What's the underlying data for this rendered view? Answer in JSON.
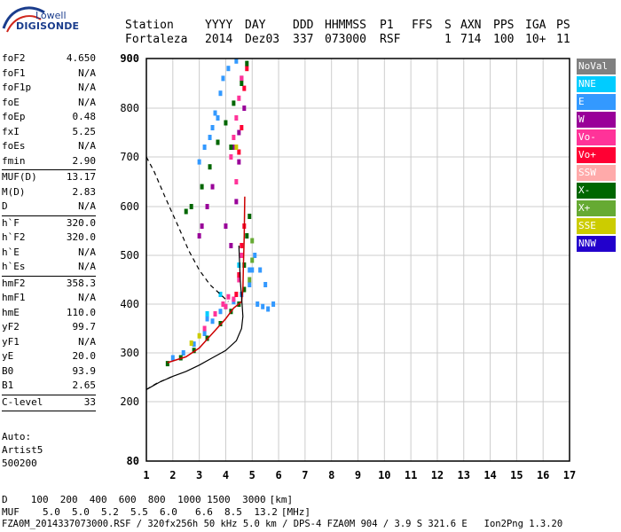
{
  "logo": {
    "line1": "Lowell",
    "line2": "DIGISONDE"
  },
  "header": {
    "labels": [
      "Station",
      "YYYY",
      "DAY",
      "DDD",
      "HHMMSS",
      "P1",
      "FFS",
      "S",
      "AXN",
      "PPS",
      "IGA",
      "PS"
    ],
    "values": [
      "Fortaleza",
      "2014",
      "Dez03",
      "337",
      "073000",
      "RSF",
      "1",
      "714",
      "100",
      "10+",
      "11"
    ]
  },
  "params": [
    {
      "label": "foF2",
      "value": "4.650"
    },
    {
      "label": "foF1",
      "value": "N/A"
    },
    {
      "label": "foF1p",
      "value": "N/A"
    },
    {
      "label": "foE",
      "value": "N/A"
    },
    {
      "label": "foEp",
      "value": "0.48"
    },
    {
      "label": "fxI",
      "value": "5.25"
    },
    {
      "label": "foEs",
      "value": "N/A"
    },
    {
      "label": "fmin",
      "value": "2.90",
      "sep": true
    },
    {
      "label": "MUF(D)",
      "value": "13.17"
    },
    {
      "label": "M(D)",
      "value": "2.83"
    },
    {
      "label": "D",
      "value": "N/A",
      "sep": true
    },
    {
      "label": "h`F",
      "value": "320.0"
    },
    {
      "label": "h`F2",
      "value": "320.0"
    },
    {
      "label": "h`E",
      "value": "N/A"
    },
    {
      "label": "h`Es",
      "value": "N/A",
      "sep": true
    },
    {
      "label": "hmF2",
      "value": "358.3"
    },
    {
      "label": "hmF1",
      "value": "N/A"
    },
    {
      "label": "hmE",
      "value": "110.0"
    },
    {
      "label": "yF2",
      "value": "99.7"
    },
    {
      "label": "yF1",
      "value": "N/A"
    },
    {
      "label": "yE",
      "value": "20.0"
    },
    {
      "label": "B0",
      "value": "93.9"
    },
    {
      "label": "B1",
      "value": "2.65",
      "sep": true
    },
    {
      "label": "C-level",
      "value": "33",
      "sep": true
    }
  ],
  "auto": {
    "line1": "Auto:",
    "line2": "Artist5",
    "line3": "500200"
  },
  "legend": [
    {
      "label": "NoVal",
      "color": "#808080"
    },
    {
      "label": "NNE",
      "color": "#00ccff"
    },
    {
      "label": "E",
      "color": "#3399ff"
    },
    {
      "label": "W",
      "color": "#990099"
    },
    {
      "label": "Vo-",
      "color": "#ff3399"
    },
    {
      "label": "Vo+",
      "color": "#ff0033"
    },
    {
      "label": "SSW",
      "color": "#ffaaaa"
    },
    {
      "label": "X-",
      "color": "#006600"
    },
    {
      "label": "X+",
      "color": "#66aa33"
    },
    {
      "label": "SSE",
      "color": "#cccc00"
    },
    {
      "label": "NNW",
      "color": "#2200cc"
    }
  ],
  "footer": {
    "d_label": "D",
    "d_values": [
      "100",
      "200",
      "400",
      "600",
      "800",
      "1000",
      "1500",
      "3000"
    ],
    "d_unit": "[km]",
    "muf_label": "MUF",
    "muf_values": [
      "5.0",
      "5.0",
      "5.2",
      "5.5",
      "6.0",
      "6.6",
      "8.5",
      "13.2"
    ],
    "muf_unit": "[MHz]",
    "info": "FZA0M_2014337073000.RSF / 320fx256h 50 kHz 5.0 km / DPS-4 FZA0M 904 / 3.9 S 321.6 E   Ion2Png 1.3.20"
  },
  "chart_data": {
    "type": "scatter",
    "xlim": [
      1,
      17
    ],
    "ylim": [
      80,
      900
    ],
    "xticks": [
      1,
      2,
      3,
      4,
      5,
      6,
      7,
      8,
      9,
      10,
      11,
      12,
      13,
      14,
      15,
      16,
      17
    ],
    "yticks": [
      80,
      200,
      300,
      400,
      500,
      600,
      700,
      800,
      900
    ],
    "grid": true,
    "series": [
      {
        "name": "E",
        "color": "#3399ff",
        "points": [
          [
            2.0,
            290
          ],
          [
            2.4,
            300
          ],
          [
            2.8,
            318
          ],
          [
            3.2,
            340
          ],
          [
            3.5,
            365
          ],
          [
            3.8,
            385
          ],
          [
            4.0,
            395
          ],
          [
            4.3,
            405
          ],
          [
            4.6,
            420
          ],
          [
            4.9,
            440
          ],
          [
            5.0,
            470
          ],
          [
            5.2,
            400
          ],
          [
            5.4,
            395
          ],
          [
            5.6,
            390
          ],
          [
            5.8,
            400
          ],
          [
            5.5,
            440
          ],
          [
            5.3,
            470
          ],
          [
            5.1,
            500
          ],
          [
            4.9,
            470
          ],
          [
            3.3,
            370
          ],
          [
            3.0,
            690
          ],
          [
            3.4,
            740
          ],
          [
            3.6,
            790
          ],
          [
            3.8,
            830
          ],
          [
            3.7,
            780
          ],
          [
            3.5,
            760
          ],
          [
            3.2,
            720
          ],
          [
            3.9,
            860
          ],
          [
            4.1,
            880
          ],
          [
            4.4,
            895
          ]
        ]
      },
      {
        "name": "W",
        "color": "#990099",
        "points": [
          [
            3.0,
            540
          ],
          [
            3.1,
            560
          ],
          [
            3.3,
            600
          ],
          [
            3.5,
            640
          ],
          [
            4.0,
            560
          ],
          [
            4.2,
            520
          ],
          [
            4.4,
            610
          ],
          [
            4.5,
            690
          ],
          [
            4.3,
            720
          ],
          [
            4.7,
            800
          ],
          [
            4.6,
            860
          ],
          [
            4.5,
            750
          ]
        ]
      },
      {
        "name": "Vo-",
        "color": "#ff3399",
        "points": [
          [
            3.2,
            350
          ],
          [
            3.6,
            380
          ],
          [
            4.0,
            395
          ],
          [
            4.3,
            410
          ],
          [
            4.5,
            450
          ],
          [
            4.6,
            500
          ],
          [
            4.1,
            415
          ],
          [
            3.9,
            400
          ],
          [
            4.2,
            700
          ],
          [
            4.3,
            740
          ],
          [
            4.4,
            780
          ],
          [
            4.5,
            820
          ],
          [
            4.6,
            860
          ],
          [
            4.4,
            650
          ]
        ]
      },
      {
        "name": "Vo+",
        "color": "#ff0033",
        "points": [
          [
            4.4,
            420
          ],
          [
            4.5,
            460
          ],
          [
            4.6,
            520
          ],
          [
            4.7,
            560
          ],
          [
            4.5,
            710
          ],
          [
            4.6,
            760
          ],
          [
            4.7,
            840
          ],
          [
            4.8,
            880
          ]
        ]
      },
      {
        "name": "X-",
        "color": "#006600",
        "points": [
          [
            1.8,
            278
          ],
          [
            2.3,
            290
          ],
          [
            2.8,
            305
          ],
          [
            3.3,
            330
          ],
          [
            3.8,
            360
          ],
          [
            4.2,
            385
          ],
          [
            4.5,
            400
          ],
          [
            4.7,
            430
          ],
          [
            4.7,
            480
          ],
          [
            4.8,
            540
          ],
          [
            4.9,
            580
          ],
          [
            3.1,
            640
          ],
          [
            3.4,
            680
          ],
          [
            3.7,
            730
          ],
          [
            4.0,
            770
          ],
          [
            4.3,
            810
          ],
          [
            4.6,
            850
          ],
          [
            4.8,
            890
          ],
          [
            2.5,
            590
          ],
          [
            2.7,
            600
          ],
          [
            4.2,
            720
          ]
        ]
      },
      {
        "name": "X+",
        "color": "#66aa33",
        "points": [
          [
            4.9,
            450
          ],
          [
            5.0,
            490
          ],
          [
            5.0,
            530
          ]
        ]
      },
      {
        "name": "SSE",
        "color": "#cccc00",
        "points": [
          [
            2.7,
            320
          ],
          [
            3.0,
            335
          ],
          [
            4.4,
            720
          ]
        ]
      },
      {
        "name": "NNE",
        "color": "#00ccff",
        "points": [
          [
            3.3,
            380
          ],
          [
            3.8,
            420
          ],
          [
            4.5,
            480
          ]
        ]
      }
    ],
    "profile": [
      [
        1.0,
        225
      ],
      [
        1.5,
        240
      ],
      [
        2.0,
        252
      ],
      [
        2.5,
        262
      ],
      [
        3.0,
        275
      ],
      [
        3.5,
        290
      ],
      [
        4.0,
        305
      ],
      [
        4.4,
        325
      ],
      [
        4.6,
        350
      ],
      [
        4.65,
        375
      ],
      [
        4.62,
        400
      ],
      [
        4.55,
        450
      ],
      [
        4.5,
        520
      ],
      [
        4.45,
        560
      ],
      [
        4.4,
        590
      ],
      [
        4.3,
        620
      ],
      [
        4.1,
        560
      ],
      [
        3.8,
        500
      ],
      [
        3.4,
        470
      ],
      [
        2.8,
        460
      ],
      [
        2.2,
        450
      ],
      [
        1.8,
        460
      ],
      [
        1.5,
        480
      ],
      [
        1.2,
        520
      ],
      [
        1.0,
        560
      ]
    ],
    "trace_fit": [
      [
        1.8,
        280
      ],
      [
        2.5,
        292
      ],
      [
        3.0,
        310
      ],
      [
        3.5,
        340
      ],
      [
        4.0,
        370
      ],
      [
        4.3,
        392
      ],
      [
        4.6,
        405
      ],
      [
        4.65,
        430
      ],
      [
        4.67,
        480
      ],
      [
        4.7,
        540
      ],
      [
        4.72,
        620
      ]
    ],
    "dashed_upper": [
      [
        1.0,
        700
      ],
      [
        1.3,
        670
      ],
      [
        1.7,
        620
      ],
      [
        2.2,
        560
      ],
      [
        2.6,
        510
      ],
      [
        3.0,
        470
      ],
      [
        3.4,
        440
      ],
      [
        3.8,
        420
      ],
      [
        4.1,
        405
      ]
    ],
    "dashed_lower": [
      [
        1.0,
        225
      ],
      [
        1.4,
        238
      ],
      [
        2.0,
        252
      ]
    ]
  }
}
